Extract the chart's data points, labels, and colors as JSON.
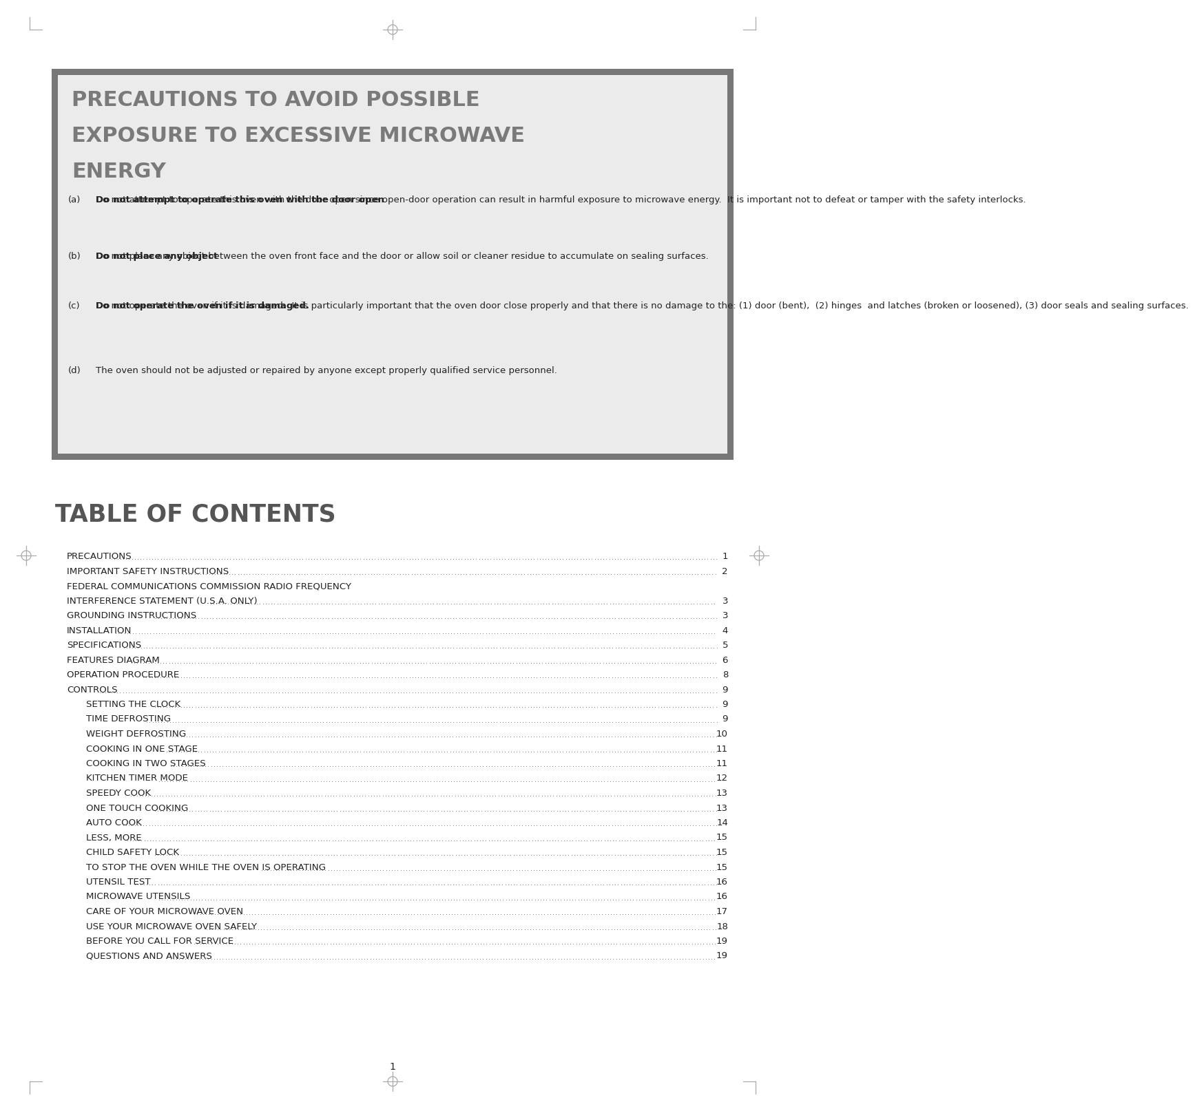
{
  "page_bg": "#ffffff",
  "box_bg": "#ebebeb",
  "box_border": "#777777",
  "header_title_color": "#7a7a7a",
  "text_color": "#222222",
  "toc_text_color": "#222222",
  "toc_title_color": "#555555",
  "header_title_lines": [
    "PRECAUTIONS TO AVOID POSSIBLE",
    "EXPOSURE TO EXCESSIVE MICROWAVE",
    "ENERGY"
  ],
  "precaution_items": [
    {
      "label": "(a)",
      "bold": "Do not attempt to operate this oven with the door open",
      "normal": " since open-door operation can result in harmful exposure to microwave energy.  It is important not to defeat or tamper with the safety interlocks."
    },
    {
      "label": "(b)",
      "bold": "Do not place any object",
      "normal": " between the oven front face and the door or allow soil or cleaner residue to accumulate on sealing surfaces."
    },
    {
      "label": "(c)",
      "bold": "Do not operate the oven if it is damaged.",
      "normal": "  It is particularly important that the oven door close properly and that there is no damage to the: (1) door (bent),  (2) hinges  and latches (broken or loosened), (3) door seals and sealing surfaces."
    },
    {
      "label": "(d)",
      "bold": "",
      "normal": "The oven should not be adjusted or repaired by anyone except properly qualified service personnel."
    }
  ],
  "toc_title": "TABLE OF CONTENTS",
  "toc_entries": [
    {
      "text": "PRECAUTIONS",
      "page": "1",
      "indent": 0
    },
    {
      "text": "IMPORTANT SAFETY INSTRUCTIONS",
      "page": "2",
      "indent": 0
    },
    {
      "text": "FEDERAL COMMUNICATIONS COMMISSION RADIO FREQUENCY",
      "page": "",
      "indent": 0
    },
    {
      "text": "INTERFERENCE STATEMENT (U.S.A. ONLY)",
      "page": "3",
      "indent": 0
    },
    {
      "text": "GROUNDING INSTRUCTIONS",
      "page": "3",
      "indent": 0
    },
    {
      "text": "INSTALLATION",
      "page": "4",
      "indent": 0
    },
    {
      "text": "SPECIFICATIONS",
      "page": "5",
      "indent": 0
    },
    {
      "text": "FEATURES DIAGRAM",
      "page": "6",
      "indent": 0
    },
    {
      "text": "OPERATION PROCEDURE",
      "page": "8",
      "indent": 0
    },
    {
      "text": "CONTROLS",
      "page": "9",
      "indent": 0
    },
    {
      "text": "SETTING THE CLOCK",
      "page": "9",
      "indent": 1
    },
    {
      "text": "TIME DEFROSTING",
      "page": "9",
      "indent": 1
    },
    {
      "text": "WEIGHT DEFROSTING",
      "page": "10",
      "indent": 1
    },
    {
      "text": "COOKING IN ONE STAGE",
      "page": "11",
      "indent": 1
    },
    {
      "text": "COOKING IN TWO STAGES",
      "page": "11",
      "indent": 1
    },
    {
      "text": "KITCHEN TIMER MODE",
      "page": "12",
      "indent": 1
    },
    {
      "text": "SPEEDY COOK",
      "page": "13",
      "indent": 1
    },
    {
      "text": "ONE TOUCH COOKING",
      "page": "13",
      "indent": 1
    },
    {
      "text": "AUTO COOK",
      "page": "14",
      "indent": 1
    },
    {
      "text": "LESS, MORE",
      "page": "15",
      "indent": 1
    },
    {
      "text": "CHILD SAFETY LOCK",
      "page": "15",
      "indent": 1
    },
    {
      "text": "TO STOP THE OVEN WHILE THE OVEN IS OPERATING",
      "page": "15",
      "indent": 1
    },
    {
      "text": "UTENSIL TEST",
      "page": "16",
      "indent": 1
    },
    {
      "text": "MICROWAVE UTENSILS",
      "page": "16",
      "indent": 1
    },
    {
      "text": "CARE OF YOUR MICROWAVE OVEN",
      "page": "17",
      "indent": 1
    },
    {
      "text": "USE YOUR MICROWAVE OVEN SAFELY",
      "page": "18",
      "indent": 1
    },
    {
      "text": "BEFORE YOU CALL FOR SERVICE",
      "page": "19",
      "indent": 1
    },
    {
      "text": "QUESTIONS AND ANSWERS",
      "page": "19",
      "indent": 1
    }
  ],
  "page_number": "1"
}
